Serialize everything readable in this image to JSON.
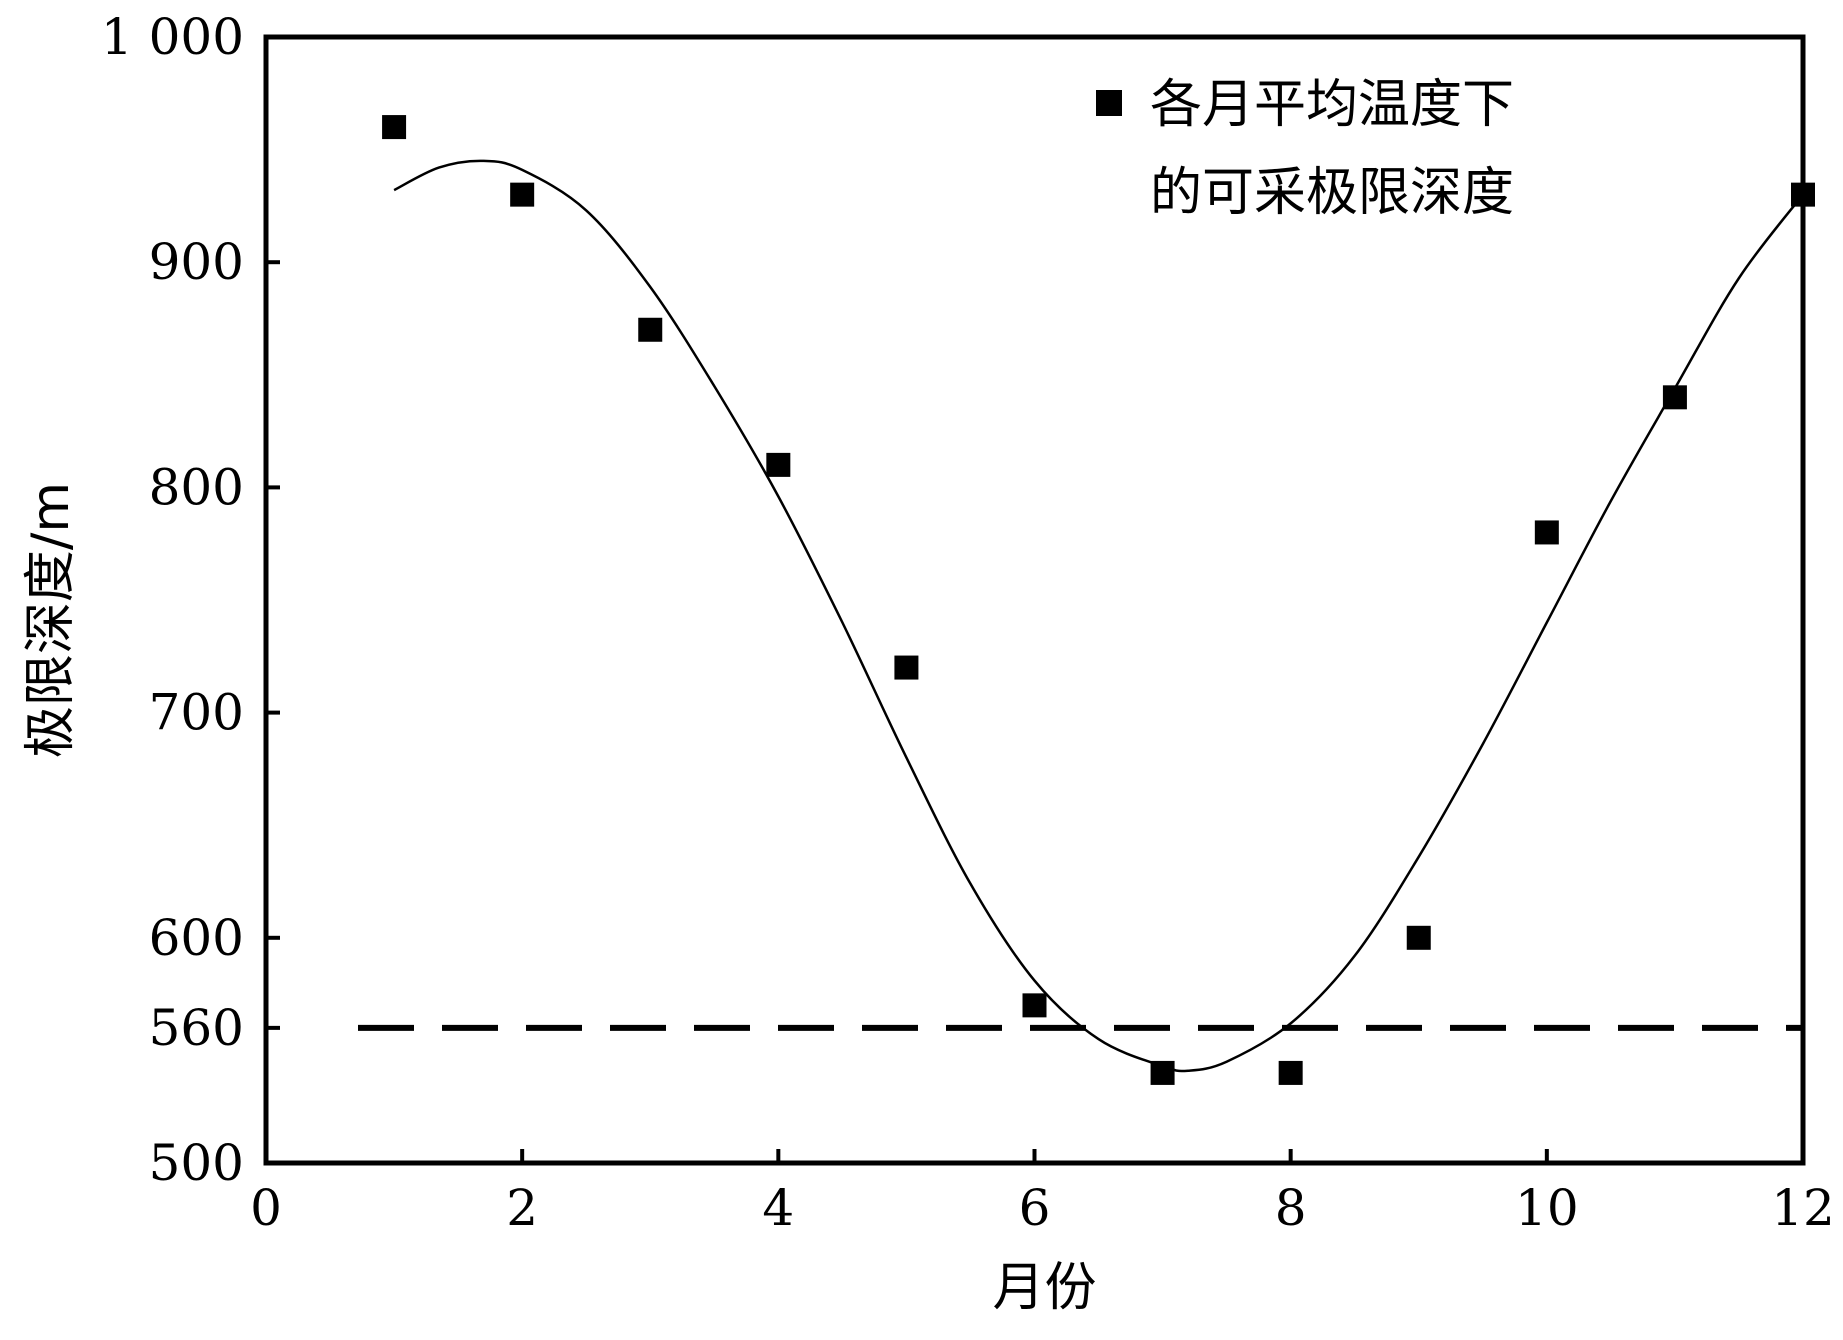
{
  "chart_data": {
    "type": "scatter",
    "xlabel": "月份",
    "ylabel": "极限深度/m",
    "xlim": [
      0,
      12
    ],
    "ylim": [
      500,
      1000
    ],
    "x_ticks": [
      0,
      2,
      4,
      6,
      8,
      10,
      12
    ],
    "x_tick_labels": [
      "0",
      "2",
      "4",
      "6",
      "8",
      "10",
      "12"
    ],
    "y_ticks": [
      500,
      560,
      600,
      700,
      800,
      900,
      1000
    ],
    "y_tick_labels": [
      "500",
      "560",
      "600",
      "700",
      "800",
      "900",
      "1 000"
    ],
    "legend": {
      "position": "top-right",
      "label_line1": "各月平均温度下",
      "label_line2": "的可采极限深度"
    },
    "series": [
      {
        "name": "各月平均温度下的可采极限深度",
        "marker": "square",
        "color": "#000000",
        "x": [
          1,
          2,
          3,
          4,
          5,
          6,
          7,
          8,
          9,
          10,
          11,
          12
        ],
        "y": [
          960,
          930,
          870,
          810,
          720,
          570,
          540,
          540,
          600,
          780,
          840,
          930
        ]
      }
    ],
    "fit_curve": {
      "style": "solid",
      "color": "#000000",
      "x": [
        1,
        1.35,
        1.7,
        2.0,
        2.5,
        3.0,
        3.5,
        4.0,
        4.5,
        5.0,
        5.5,
        6.0,
        6.5,
        7.0,
        7.2,
        7.5,
        8.0,
        8.5,
        9.0,
        9.5,
        10.0,
        10.5,
        11.0,
        11.5,
        12.0
      ],
      "y": [
        932,
        942,
        945,
        941,
        923,
        889,
        845,
        796,
        740,
        680,
        624,
        581,
        555,
        543,
        541,
        545,
        562,
        592,
        636,
        686,
        740,
        794,
        844,
        893,
        930
      ]
    },
    "reference_line": {
      "y": 560,
      "style": "dashed",
      "color": "#000000"
    },
    "grid": false
  }
}
